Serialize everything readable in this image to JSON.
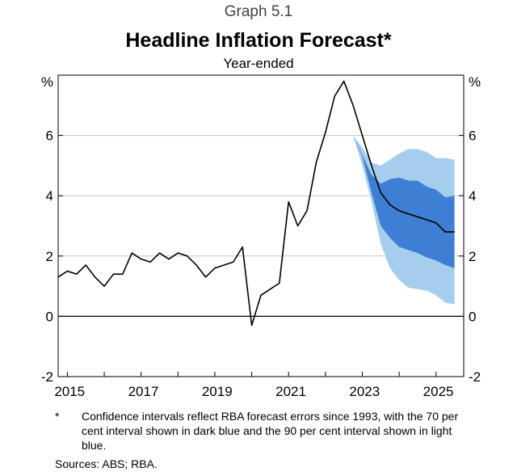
{
  "header": {
    "graph_number": "Graph 5.1",
    "title": "Headline Inflation Forecast*",
    "subtitle": "Year-ended"
  },
  "footnote": {
    "marker": "*",
    "text": "Confidence intervals reflect RBA forecast errors since 1993, with the 70 per cent interval shown in dark blue and the 90 per cent interval shown in light blue."
  },
  "sources": "Sources: ABS; RBA.",
  "colors": {
    "line": "#000000",
    "band90": "#a7cdee",
    "band70": "#3e7fd3",
    "grid": "#c8c8c8"
  },
  "chart_data": {
    "type": "line",
    "y_unit_left": "%",
    "y_unit_right": "%",
    "ylim": [
      -2,
      8
    ],
    "yticks": [
      -2,
      0,
      2,
      4,
      6
    ],
    "xlim": [
      2014.75,
      2025.75
    ],
    "xticks": [
      2015,
      2017,
      2019,
      2021,
      2023,
      2025
    ],
    "grid": true,
    "series": [
      {
        "type": "line",
        "x": [
          2014.75,
          2015.0,
          2015.25,
          2015.5,
          2015.75,
          2016.0,
          2016.25,
          2016.5,
          2016.75,
          2017.0,
          2017.25,
          2017.5,
          2017.75,
          2018.0,
          2018.25,
          2018.5,
          2018.75,
          2019.0,
          2019.25,
          2019.5,
          2019.75,
          2020.0,
          2020.25,
          2020.5,
          2020.75,
          2021.0,
          2021.25,
          2021.5,
          2021.75,
          2022.0,
          2022.25,
          2022.5,
          2022.75,
          2023.0,
          2023.25,
          2023.5,
          2023.75,
          2024.0,
          2024.25,
          2024.5,
          2024.75,
          2025.0,
          2025.25,
          2025.5
        ],
        "values": [
          1.3,
          1.5,
          1.4,
          1.7,
          1.3,
          1.0,
          1.4,
          1.4,
          2.1,
          1.9,
          1.8,
          2.1,
          1.9,
          2.1,
          2.0,
          1.7,
          1.3,
          1.6,
          1.7,
          1.8,
          2.3,
          -0.3,
          0.7,
          0.9,
          1.1,
          3.8,
          3.0,
          3.5,
          5.1,
          6.1,
          7.3,
          7.8,
          7.0,
          6.0,
          5.0,
          4.1,
          3.7,
          3.5,
          3.4,
          3.3,
          3.2,
          3.1,
          2.8,
          2.8
        ]
      }
    ],
    "forecast_band_90": {
      "x": [
        2022.75,
        2023.0,
        2023.25,
        2023.5,
        2023.75,
        2024.0,
        2024.25,
        2024.5,
        2024.75,
        2025.0,
        2025.25,
        2025.5
      ],
      "upper": [
        6.0,
        5.6,
        5.1,
        5.0,
        5.2,
        5.4,
        5.55,
        5.55,
        5.45,
        5.25,
        5.25,
        5.2
      ],
      "lower": [
        6.0,
        5.0,
        3.8,
        2.4,
        1.6,
        1.2,
        0.95,
        0.9,
        0.85,
        0.7,
        0.45,
        0.4
      ]
    },
    "forecast_band_70": {
      "x": [
        2022.75,
        2023.0,
        2023.25,
        2023.5,
        2023.75,
        2024.0,
        2024.25,
        2024.5,
        2024.75,
        2025.0,
        2025.25,
        2025.5
      ],
      "upper": [
        6.0,
        5.35,
        4.7,
        4.4,
        4.55,
        4.6,
        4.5,
        4.5,
        4.3,
        4.2,
        3.95,
        4.0
      ],
      "lower": [
        6.0,
        5.3,
        4.1,
        3.0,
        2.6,
        2.3,
        2.2,
        2.1,
        1.95,
        1.85,
        1.7,
        1.6
      ]
    }
  }
}
